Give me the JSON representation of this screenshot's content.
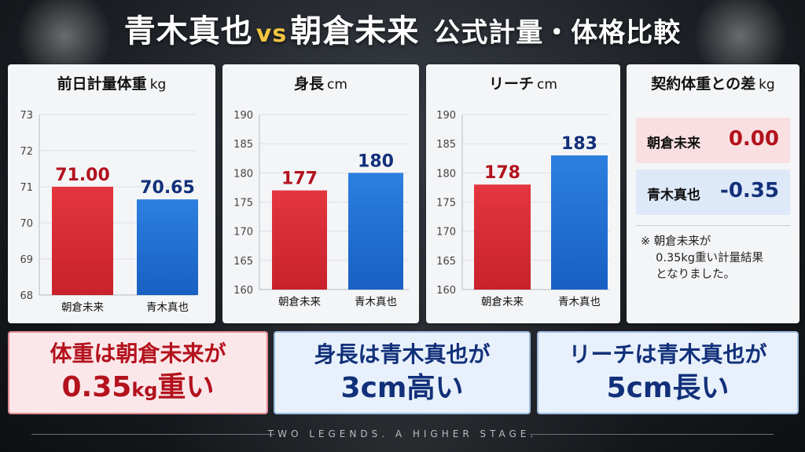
{
  "title": {
    "name_a": "青木真也",
    "vs": "vs",
    "name_b": "朝倉未来",
    "subtitle": "公式計量・体格比較"
  },
  "colors": {
    "asakura": "#dc2a33",
    "aoki": "#1f6fd1",
    "red_text": "#b3121d",
    "blue_text": "#12307a"
  },
  "chart_data": [
    {
      "type": "bar",
      "title": "前日計量体重",
      "unit": "kg",
      "categories": [
        "朝倉未来",
        "青木真也"
      ],
      "values": [
        71.0,
        70.65
      ],
      "value_labels": [
        "71.00",
        "70.65"
      ],
      "ylim": [
        68,
        73
      ],
      "yticks": [
        "73",
        "72",
        "71",
        "70",
        "69",
        "68"
      ],
      "grid": true
    },
    {
      "type": "bar",
      "title": "身長",
      "unit": "cm",
      "categories": [
        "朝倉未来",
        "青木真也"
      ],
      "values": [
        177,
        180
      ],
      "value_labels": [
        "177",
        "180"
      ],
      "ylim": [
        160,
        190
      ],
      "yticks": [
        "190",
        "185",
        "180",
        "175",
        "170",
        "165",
        "160"
      ],
      "grid": true
    },
    {
      "type": "bar",
      "title": "リーチ",
      "unit": "cm",
      "categories": [
        "朝倉未来",
        "青木真也"
      ],
      "values": [
        178,
        183
      ],
      "value_labels": [
        "178",
        "183"
      ],
      "ylim": [
        160,
        190
      ],
      "yticks": [
        "190",
        "185",
        "180",
        "175",
        "170",
        "165",
        "160"
      ],
      "grid": true
    }
  ],
  "diff_panel": {
    "title": "契約体重との差",
    "unit": "kg",
    "rows": [
      {
        "name": "朝倉未来",
        "value": "0.00"
      },
      {
        "name": "青木真也",
        "value": "-0.35"
      }
    ],
    "note": "※ 朝倉未来が\n　 0.35kg重い計量結果\n　 となりました。"
  },
  "summaries": [
    {
      "line1": "体重は朝倉未来が",
      "line2_main": "0.35",
      "line2_unit": "kg",
      "line2_tail": "重い"
    },
    {
      "line1": "身長は青木真也が",
      "line2_main": "3",
      "line2_unit": "cm",
      "line2_tail": "高い"
    },
    {
      "line1": "リーチは青木真也が",
      "line2_main": "5",
      "line2_unit": "cm",
      "line2_tail": "長い"
    }
  ],
  "tagline": "TWO LEGENDS. A HIGHER STAGE."
}
